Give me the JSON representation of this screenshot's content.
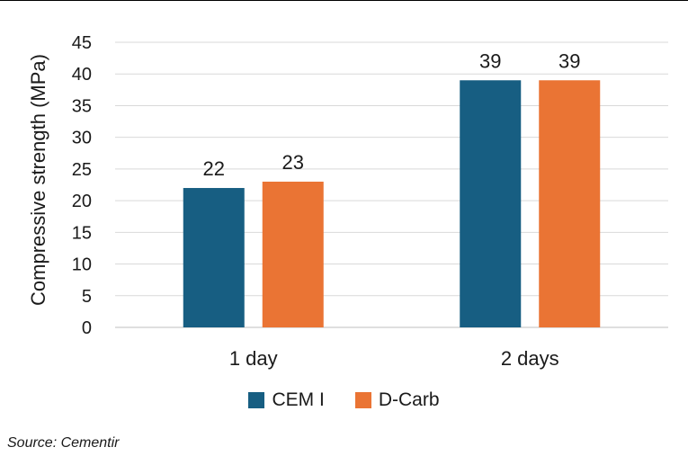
{
  "chart_data": {
    "type": "bar",
    "categories": [
      "1 day",
      "2 days"
    ],
    "series": [
      {
        "name": "CEM I",
        "values": [
          22,
          39
        ],
        "color": "#175e82"
      },
      {
        "name": "D-Carb",
        "values": [
          23,
          39
        ],
        "color": "#ea7434"
      }
    ],
    "ylabel": "Compressive strength (MPa)",
    "xlabel": "",
    "ylim": [
      0,
      45
    ],
    "yticks": [
      0,
      5,
      10,
      15,
      20,
      25,
      30,
      35,
      40,
      45
    ],
    "grid": true,
    "legend_position": "bottom"
  },
  "source": "Source: Cementir"
}
